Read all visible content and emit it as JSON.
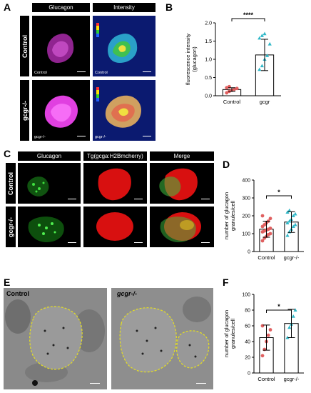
{
  "panels": {
    "A": {
      "letter": "A",
      "columns": [
        "Glucagon",
        "Intensity"
      ],
      "rows": [
        "Control",
        "gcgr-/-"
      ],
      "inset_labels": [
        "Control",
        "Control",
        "gcgr-/-",
        "gcgr-/-"
      ],
      "colors": {
        "glucagon": "#e040e0",
        "intensity_bg": "#10208a"
      }
    },
    "B": {
      "letter": "B"
    },
    "C": {
      "letter": "C",
      "columns": [
        "Glucagon",
        "Tg(gcga:H2Bmcherry)",
        "Merge"
      ],
      "rows": [
        "Control",
        "gcgr-/-"
      ],
      "colors": {
        "glucagon": "#30c030",
        "mcherry": "#e01010"
      }
    },
    "D": {
      "letter": "D"
    },
    "E": {
      "letter": "E",
      "labels": [
        "Control",
        "gcgr-/-"
      ]
    },
    "F": {
      "letter": "F"
    }
  },
  "chart_data": [
    {
      "id": "B",
      "type": "bar",
      "categories": [
        "Control",
        "gcgr"
      ],
      "values": [
        0.17,
        1.12
      ],
      "errors": [
        0.05,
        0.43
      ],
      "ylabel": "fluorescence intensity\n(glucagon)",
      "yticks": [
        "0.0",
        "0.5",
        "1.0",
        "1.5",
        "2.0"
      ],
      "ylim": [
        0,
        2.0
      ],
      "significance": "****",
      "points": [
        [
          0.08,
          0.12,
          0.15,
          0.18,
          0.2,
          0.22,
          0.25
        ],
        [
          0.72,
          0.82,
          1.0,
          1.1,
          1.42,
          1.58,
          1.65,
          1.7
        ]
      ],
      "point_colors": [
        "#e06060",
        "#30b8c8"
      ]
    },
    {
      "id": "D",
      "type": "bar",
      "categories": [
        "Control",
        "gcgr-/-"
      ],
      "values": [
        125,
        165
      ],
      "errors": [
        45,
        58
      ],
      "ylabel": "number of glucagon\ngranules/cell",
      "yticks": [
        "0",
        "100",
        "200",
        "300",
        "400"
      ],
      "ylim": [
        0,
        400
      ],
      "significance": "*",
      "points": [
        [
          60,
          75,
          85,
          95,
          100,
          110,
          115,
          120,
          125,
          130,
          140,
          150,
          160,
          170,
          185,
          200
        ],
        [
          90,
          110,
          125,
          140,
          150,
          160,
          170,
          180,
          200,
          210,
          220,
          230
        ]
      ],
      "point_colors": [
        "#e06060",
        "#30b8c8"
      ]
    },
    {
      "id": "F",
      "type": "bar",
      "categories": [
        "Control",
        "gcgr-/-"
      ],
      "values": [
        45,
        63
      ],
      "errors": [
        16,
        18
      ],
      "ylabel": "number of glucagon\ngranules/cell",
      "yticks": [
        "0",
        "20",
        "40",
        "60",
        "80",
        "100"
      ],
      "ylim": [
        0,
        100
      ],
      "significance": "*",
      "points": [
        [
          22,
          30,
          40,
          48,
          55,
          60
        ],
        [
          45,
          58,
          62,
          72,
          80
        ]
      ],
      "point_colors": [
        "#e06060",
        "#30b8c8"
      ]
    }
  ]
}
